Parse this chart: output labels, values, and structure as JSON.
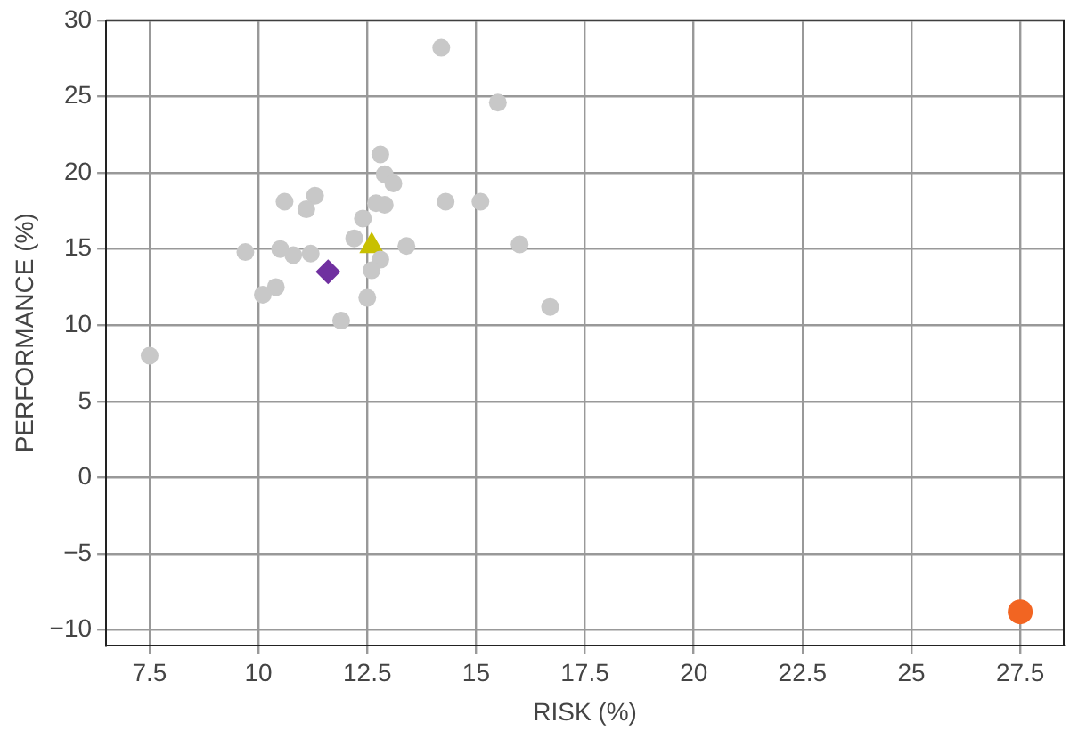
{
  "chart_data": {
    "type": "scatter",
    "xlabel": "RISK (%)",
    "ylabel": "PERFORMANCE (%)",
    "xlim": [
      6.5,
      28.5
    ],
    "ylim": [
      -11,
      30
    ],
    "xticks": [
      7.5,
      10,
      12.5,
      15,
      17.5,
      20,
      22.5,
      25,
      27.5
    ],
    "yticks": [
      {
        "value": -10,
        "label": "−10"
      },
      {
        "value": -5,
        "label": "−5"
      },
      0,
      5,
      10,
      15,
      20,
      25,
      30
    ],
    "grid": true,
    "legend": false,
    "series": [
      {
        "color": "#c8c8c8",
        "marker": "circle",
        "x": [
          14.2,
          15.5,
          12.8,
          12.9,
          13.1,
          10.6,
          11.3,
          11.1,
          12.7,
          12.9,
          14.3,
          15.1,
          12.4,
          12.2,
          13.4,
          16.0,
          9.7,
          10.5,
          10.8,
          11.2,
          12.8,
          12.6,
          10.4,
          10.1,
          12.5,
          11.9,
          16.7,
          7.5
        ],
        "values": [
          28.2,
          24.6,
          21.2,
          19.9,
          19.3,
          18.1,
          18.5,
          17.6,
          18.0,
          17.9,
          18.1,
          18.1,
          17.0,
          15.7,
          15.2,
          15.3,
          14.8,
          15.0,
          14.6,
          14.7,
          14.3,
          13.6,
          12.5,
          12.0,
          11.8,
          10.3,
          11.2,
          8.0
        ]
      },
      {
        "color": "#7030a0",
        "marker": "diamond",
        "x": [
          11.6
        ],
        "values": [
          13.5
        ]
      },
      {
        "color": "#c8c000",
        "marker": "triangle",
        "x": [
          12.6
        ],
        "values": [
          15.2
        ]
      },
      {
        "color": "#f26522",
        "marker": "circle",
        "x": [
          27.5
        ],
        "values": [
          -8.8
        ]
      }
    ]
  }
}
